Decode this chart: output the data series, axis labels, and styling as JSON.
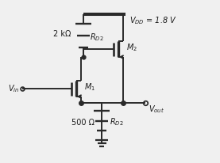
{
  "bg_color": "#f0f0f0",
  "line_color": "#2a2a2a",
  "text_color": "#1a1a1a",
  "vdd_label": "$V_{DD}$ = 1.8 V",
  "rd2_top_label": "$R_{D2}$",
  "rd2_bot_label": "$R_{D2}$",
  "m1_label": "$M_1$",
  "m2_label": "$M_2$",
  "vin_label": "$V_{in}$",
  "vout_label": "$V_{out}$",
  "res_top_val": "2 kΩ",
  "res_bot_val": "500 Ω",
  "figsize": [
    2.77,
    2.06
  ],
  "dpi": 100
}
